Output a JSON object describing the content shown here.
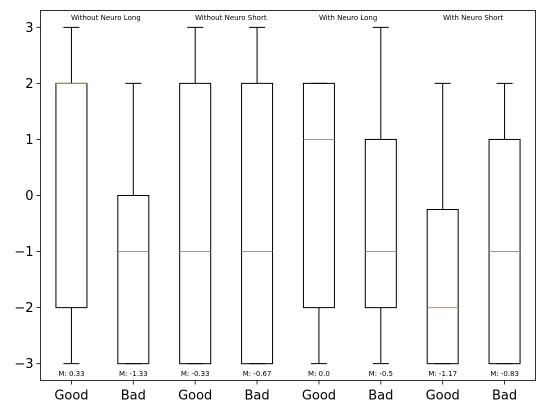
{
  "chart_data": {
    "type": "box",
    "ylim": [
      -3.3,
      3.3
    ],
    "yticks": [
      3,
      2,
      1,
      0,
      -1,
      -2,
      -3
    ],
    "categories": [
      "Good",
      "Bad",
      "Good",
      "Bad",
      "Good",
      "Bad",
      "Good",
      "Bad"
    ],
    "group_labels": [
      "Without Neuro Long",
      "Without Neuro Short",
      "With Neuro Long",
      "With Neuro Short"
    ],
    "boxes": [
      {
        "whisker_low": -3,
        "q1": -2,
        "median": 2,
        "q3": 2,
        "whisker_high": 3,
        "mean_label": "M: 0.33"
      },
      {
        "whisker_low": -3,
        "q1": -3,
        "median": -1,
        "q3": 0,
        "whisker_high": 2,
        "mean_label": "M: -1.33"
      },
      {
        "whisker_low": -3,
        "q1": -3,
        "median": -1,
        "q3": 2,
        "whisker_high": 3,
        "mean_label": "M: -0.33"
      },
      {
        "whisker_low": -3,
        "q1": -3,
        "median": -1,
        "q3": 2,
        "whisker_high": 3,
        "mean_label": "M: -0.67"
      },
      {
        "whisker_low": -3,
        "q1": -2,
        "median": 1,
        "q3": 2,
        "whisker_high": 2,
        "mean_label": "M: 0.0"
      },
      {
        "whisker_low": -3,
        "q1": -2,
        "median": -1,
        "q3": 1,
        "whisker_high": 3,
        "mean_label": "M: -0.5"
      },
      {
        "whisker_low": -3,
        "q1": -3,
        "median": -2,
        "q3": -0.25,
        "whisker_high": 2,
        "mean_label": "M: -1.17"
      },
      {
        "whisker_low": -3,
        "q1": -3,
        "median": -1,
        "q3": 1,
        "whisker_high": 2,
        "mean_label": "M: -0.83"
      }
    ],
    "colors": {
      "box": "#000000",
      "median": "#ff7f0e"
    }
  }
}
